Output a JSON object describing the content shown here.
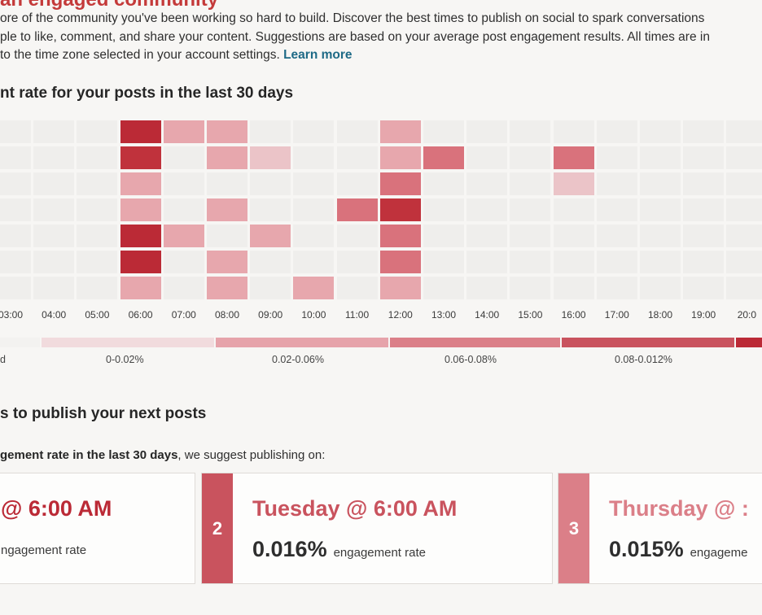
{
  "header": {
    "title": "an engaged community",
    "intro_line1": "ore of the community you've been working so hard to build. Discover the best times to publish on social to spark conversations",
    "intro_line2": "ple to like, comment, and share your content. Suggestions are based on your average post engagement results. All times are in",
    "intro_line3": "to the time zone selected in your account settings. ",
    "learn_more": "Learn more"
  },
  "heatmap": {
    "title": "nt rate for your posts in the last 30 days",
    "hours": [
      "03:00",
      "04:00",
      "05:00",
      "06:00",
      "07:00",
      "08:00",
      "09:00",
      "10:00",
      "11:00",
      "12:00",
      "13:00",
      "14:00",
      "15:00",
      "16:00",
      "17:00",
      "18:00",
      "19:00",
      "20:0"
    ],
    "colors": {
      "0": "#efeeec",
      "1": "#ebc4c8",
      "2": "#e7a7ad",
      "3": "#d9727c",
      "4": "#c0323c",
      "5": "#bb2a36"
    },
    "rows": [
      [
        0,
        0,
        0,
        5,
        2,
        2,
        0,
        0,
        0,
        2,
        0,
        0,
        0,
        0,
        0,
        0,
        0,
        0
      ],
      [
        0,
        0,
        0,
        4,
        0,
        2,
        1,
        0,
        0,
        2,
        3,
        0,
        0,
        3,
        0,
        0,
        0,
        0
      ],
      [
        0,
        0,
        0,
        2,
        0,
        0,
        0,
        0,
        0,
        3,
        0,
        0,
        0,
        1,
        0,
        0,
        0,
        0
      ],
      [
        0,
        0,
        0,
        2,
        0,
        2,
        0,
        0,
        3,
        4,
        0,
        0,
        0,
        0,
        0,
        0,
        0,
        0
      ],
      [
        0,
        0,
        0,
        5,
        2,
        0,
        2,
        0,
        0,
        3,
        0,
        0,
        0,
        0,
        0,
        0,
        0,
        0
      ],
      [
        0,
        0,
        0,
        5,
        0,
        2,
        0,
        0,
        0,
        3,
        0,
        0,
        0,
        0,
        0,
        0,
        0,
        0
      ],
      [
        0,
        0,
        0,
        2,
        0,
        2,
        0,
        2,
        0,
        2,
        0,
        0,
        0,
        0,
        0,
        0,
        0,
        0
      ]
    ]
  },
  "legend": {
    "items": [
      {
        "label": "d",
        "color": "#f3f2f0"
      },
      {
        "label": "0-0.02%",
        "color": "#f1dbdd"
      },
      {
        "label": "0.02-0.06%",
        "color": "#e6a3aa"
      },
      {
        "label": "0.06-0.08%",
        "color": "#db7f88"
      },
      {
        "label": "0.08-0.012%",
        "color": "#c9535e"
      },
      {
        "label": "",
        "color": "#bb2a36"
      }
    ]
  },
  "suggestions": {
    "title": "s to publish your next posts",
    "desc_bold": "gement rate in the last 30 days",
    "desc_rest": ", we suggest publishing on:",
    "cards": [
      {
        "rank": "",
        "time": "@ 6:00 AM",
        "rate": "",
        "rate_label": "ngagement rate",
        "color": "#bb2a36"
      },
      {
        "rank": "2",
        "time": "Tuesday  @ 6:00 AM",
        "rate": "0.016%",
        "rate_label": "engagement rate",
        "color": "#c9535e"
      },
      {
        "rank": "3",
        "time": "Thursday  @ :",
        "rate": "0.015%",
        "rate_label": "engageme",
        "color": "#db7f88"
      }
    ]
  }
}
